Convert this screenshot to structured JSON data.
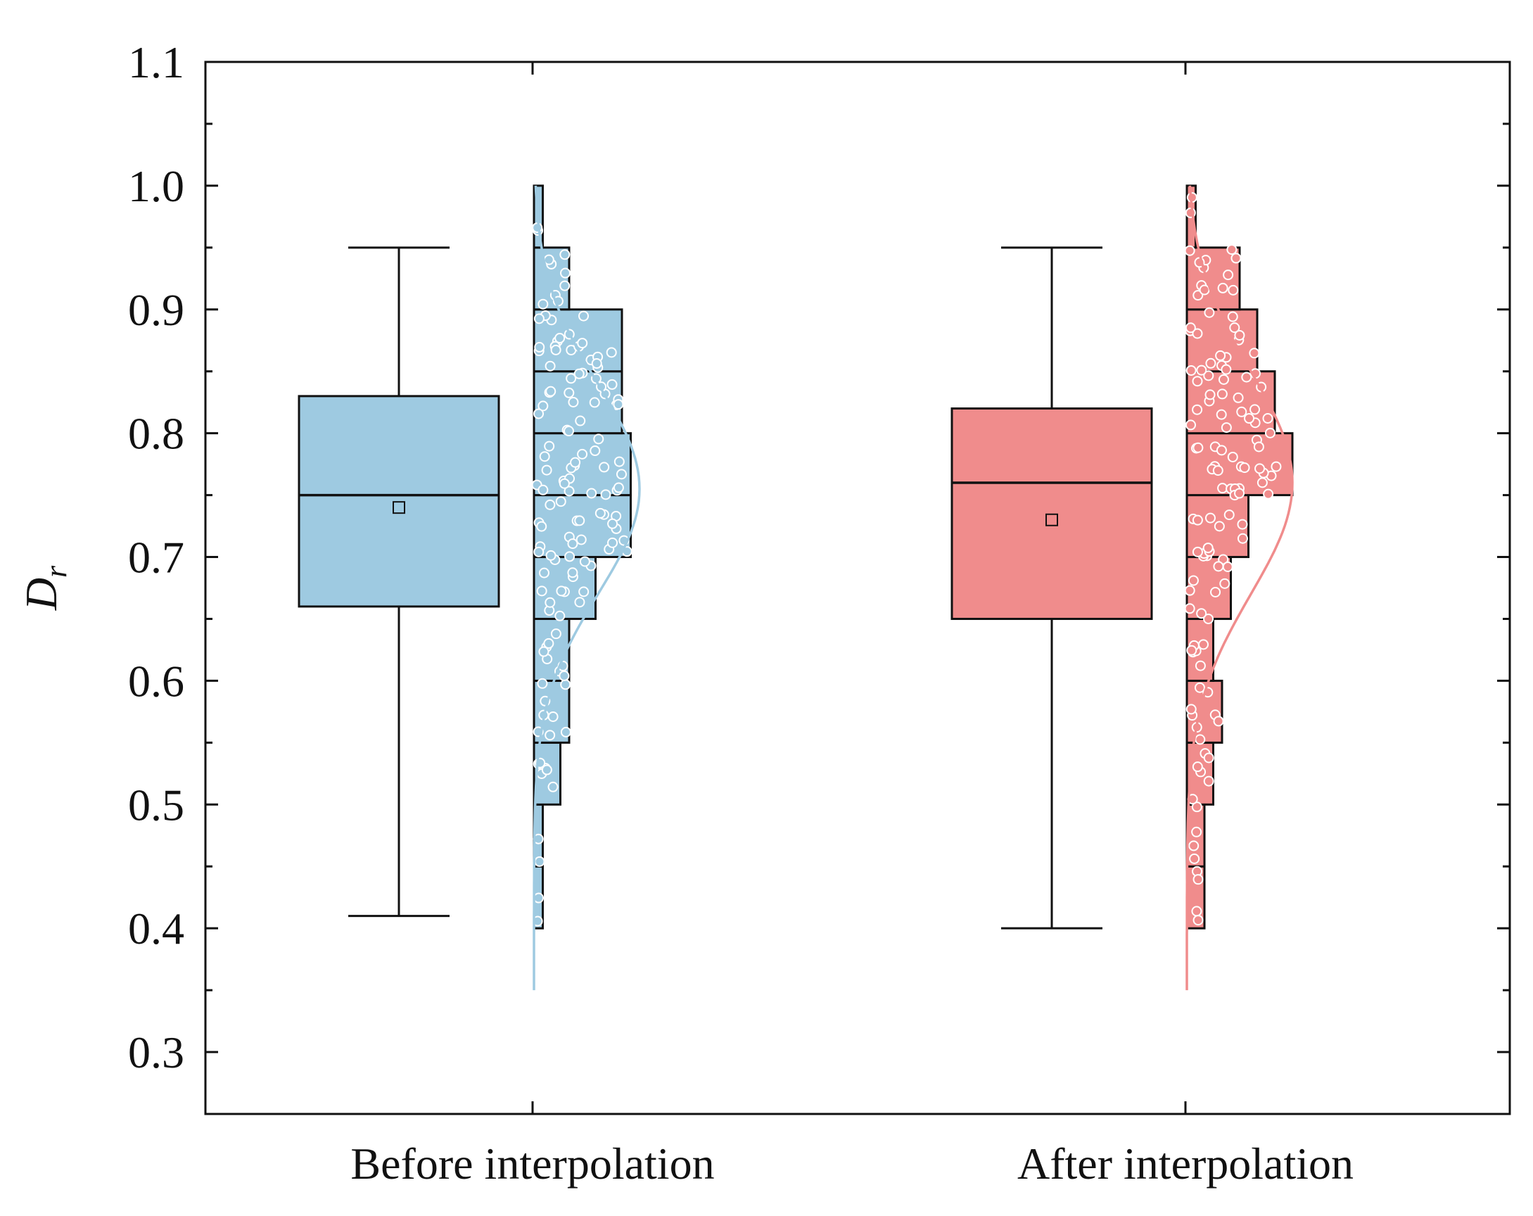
{
  "chart_data": {
    "type": "box_histogram",
    "ylabel": "D",
    "ylabel_subscript": "r",
    "ylim": [
      0.25,
      1.1
    ],
    "yticks": [
      0.3,
      0.4,
      0.5,
      0.6,
      0.7,
      0.8,
      0.9,
      1.0,
      1.1
    ],
    "ytick_labels": [
      "0.3",
      "0.4",
      "0.5",
      "0.6",
      "0.7",
      "0.8",
      "0.9",
      "1.0",
      "1.1"
    ],
    "categories": [
      "Before interpolation",
      "After interpolation"
    ],
    "groups": [
      {
        "name": "Before interpolation",
        "color": "#9ecae1",
        "curve_color": "#9ecae1",
        "box": {
          "whisker_low": 0.41,
          "q1": 0.66,
          "median": 0.75,
          "q3": 0.83,
          "whisker_high": 0.95,
          "mean": 0.74
        },
        "histogram": {
          "bin_width": 0.05,
          "bins": [
            {
              "start": 0.4,
              "count": 1
            },
            {
              "start": 0.45,
              "count": 1
            },
            {
              "start": 0.5,
              "count": 3
            },
            {
              "start": 0.55,
              "count": 4
            },
            {
              "start": 0.6,
              "count": 4
            },
            {
              "start": 0.65,
              "count": 7
            },
            {
              "start": 0.7,
              "count": 11
            },
            {
              "start": 0.75,
              "count": 11
            },
            {
              "start": 0.8,
              "count": 10
            },
            {
              "start": 0.85,
              "count": 10
            },
            {
              "start": 0.9,
              "count": 4
            },
            {
              "start": 0.95,
              "count": 1
            }
          ]
        },
        "curve": {
          "mean": 0.755,
          "sd": 0.085
        }
      },
      {
        "name": "After interpolation",
        "color": "#f08c8c",
        "curve_color": "#f08c8c",
        "box": {
          "whisker_low": 0.4,
          "q1": 0.65,
          "median": 0.76,
          "q3": 0.82,
          "whisker_high": 0.95,
          "mean": 0.73
        },
        "histogram": {
          "bin_width": 0.05,
          "bins": [
            {
              "start": 0.4,
              "count": 2
            },
            {
              "start": 0.45,
              "count": 2
            },
            {
              "start": 0.5,
              "count": 3
            },
            {
              "start": 0.55,
              "count": 4
            },
            {
              "start": 0.6,
              "count": 3
            },
            {
              "start": 0.65,
              "count": 5
            },
            {
              "start": 0.7,
              "count": 7
            },
            {
              "start": 0.75,
              "count": 12
            },
            {
              "start": 0.8,
              "count": 10
            },
            {
              "start": 0.85,
              "count": 8
            },
            {
              "start": 0.9,
              "count": 6
            },
            {
              "start": 0.95,
              "count": 1
            }
          ]
        },
        "curve": {
          "mean": 0.76,
          "sd": 0.09
        }
      }
    ]
  }
}
